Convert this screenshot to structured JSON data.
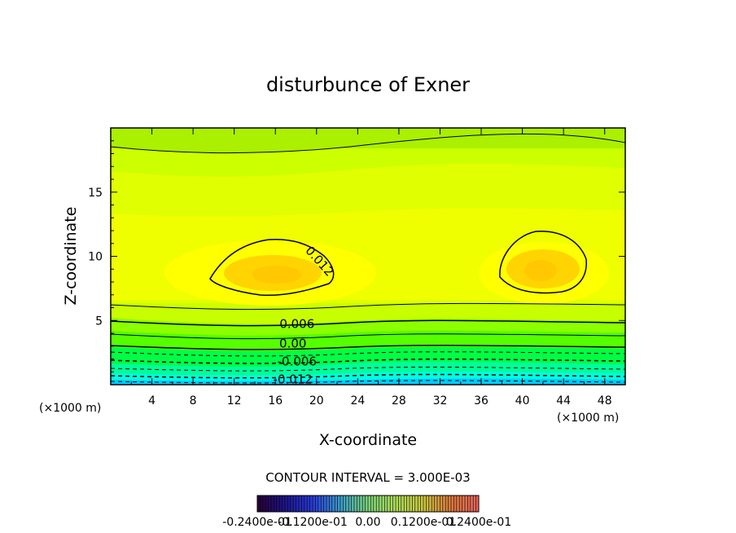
{
  "chart_data": {
    "type": "heatmap",
    "title": "disturbunce of Exner",
    "xlabel": "X-coordinate",
    "ylabel": "Z-coordinate",
    "x_unit_left": "(×1000 m)",
    "x_unit_right": "(×1000 m)",
    "xlim": [
      0,
      50
    ],
    "ylim": [
      0,
      20
    ],
    "x_ticks": [
      4,
      8,
      12,
      16,
      20,
      24,
      28,
      32,
      36,
      40,
      44,
      48
    ],
    "y_ticks": [
      5,
      10,
      15
    ],
    "contour_interval_text": "CONTOUR INTERVAL = 3.000E-03",
    "contour_labels": [
      {
        "text": "0.012",
        "x": 20,
        "z": 9.4,
        "rotate": 48
      },
      {
        "text": "0.006",
        "x": 18.1,
        "z": 4.4,
        "rotate": 0
      },
      {
        "text": "0.00",
        "x": 17.7,
        "z": 2.9,
        "rotate": 0
      },
      {
        "text": "-0.006",
        "x": 18.1,
        "z": 1.5,
        "rotate": 0
      },
      {
        "text": "-0.012",
        "x": 17.7,
        "z": 0.1,
        "rotate": 0
      }
    ],
    "colorbar_labels": [
      "-0.2400e-01",
      "-0.1200e-01",
      "0.00",
      "0.1200e-01",
      "0.2400e-01"
    ],
    "colors": {
      "background_top": "#aaf000",
      "band_upper": "#ccff00",
      "band_mid": "#e0ff00",
      "band_light": "#f0ff00",
      "blob_outer": "#ffff00",
      "blob_inner": "#ffd400",
      "core": "#ffc800",
      "low_1": "#c8ff00",
      "low_2": "#8cff00",
      "low_3": "#55ff00",
      "low_4": "#00ff44",
      "low_5": "#00ff99",
      "low_6": "#00ffdd",
      "low_7": "#00ccff"
    }
  }
}
